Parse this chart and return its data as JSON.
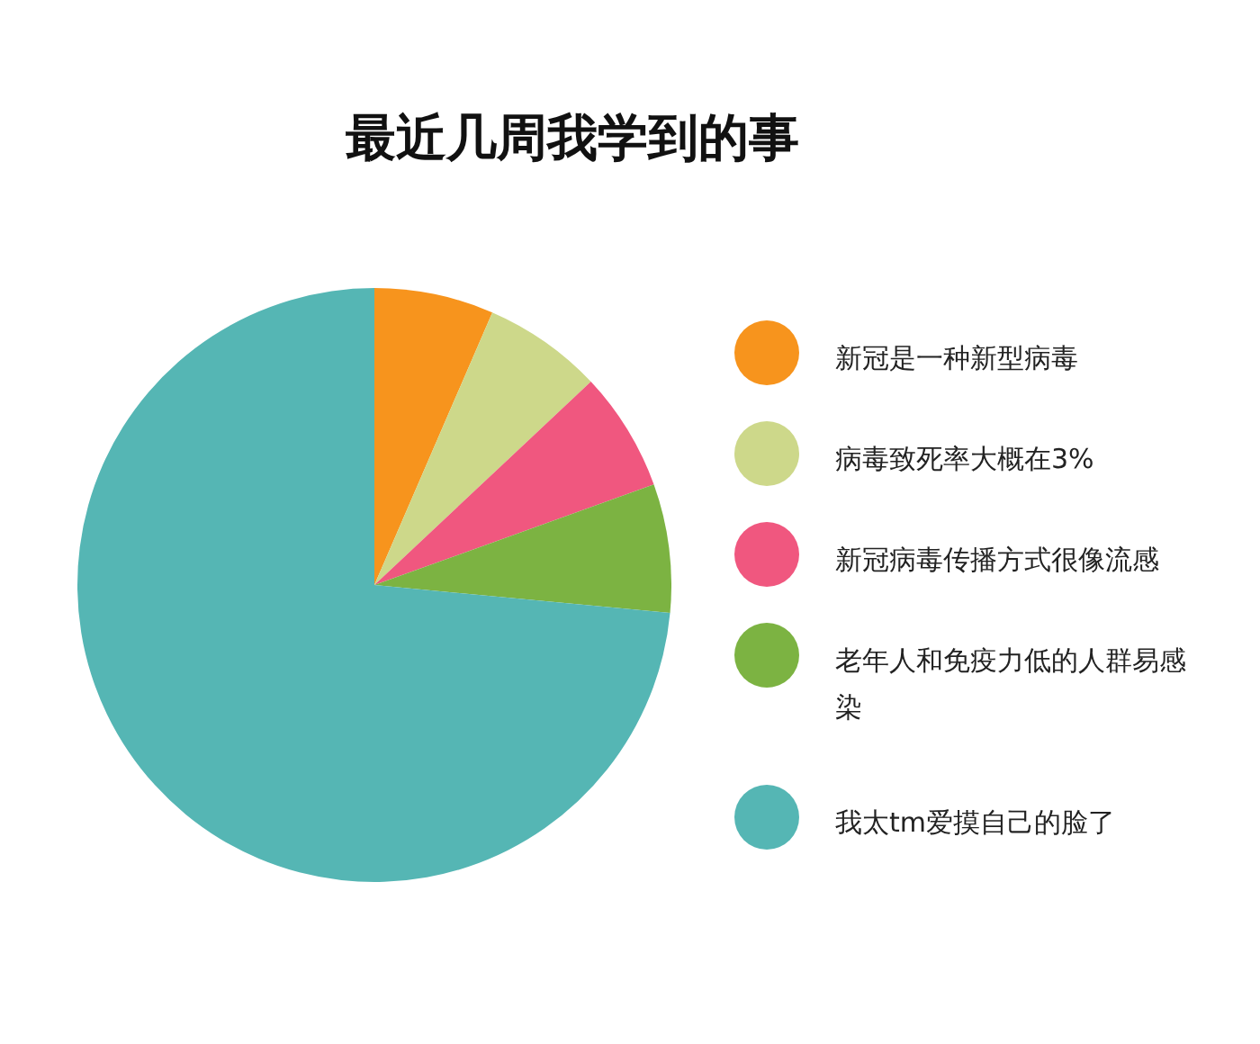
{
  "chart_data": {
    "type": "pie",
    "title": "最近几周我学到的事",
    "categories": [
      "新冠是一种新型病毒",
      "病毒致死率大概在3%",
      "新冠病毒传播方式很像流感",
      "老年人和免疫力低的人群易感染",
      "我太tm爱摸自己的脸了"
    ],
    "values": [
      6.5,
      6.5,
      6.5,
      7,
      73.5
    ],
    "colors": [
      "#f7941d",
      "#cdd88a",
      "#f0577f",
      "#7cb342",
      "#55b6b4"
    ],
    "legend": "right"
  }
}
